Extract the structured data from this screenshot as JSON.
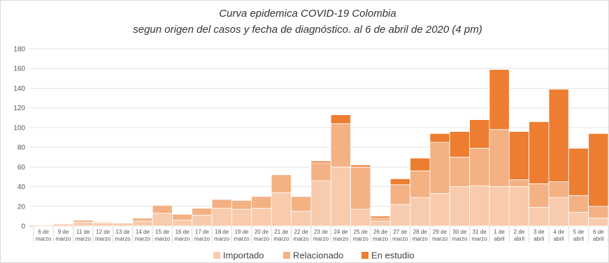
{
  "chart_data": {
    "type": "bar",
    "stacked": true,
    "title": "Curva epidemica  COVID-19 Colombia",
    "subtitle": "segun origen del casos y fecha de diagnóstico.  al 6 de abril de 2020 (4 pm)",
    "categories": [
      [
        "6 de",
        "marzo"
      ],
      [
        "9 de",
        "marzo"
      ],
      [
        "11 de",
        "marzo"
      ],
      [
        "12 de",
        "marzo"
      ],
      [
        "13 de",
        "marzo"
      ],
      [
        "14 de",
        "marzo"
      ],
      [
        "15 de",
        "marzo"
      ],
      [
        "16 de",
        "marzo"
      ],
      [
        "17 de",
        "marzo"
      ],
      [
        "18 de",
        "marzo"
      ],
      [
        "19 de",
        "marzo"
      ],
      [
        "20 de",
        "marzo"
      ],
      [
        "21 de",
        "marzo"
      ],
      [
        "22 de",
        "marzo"
      ],
      [
        "23 de",
        "marzo"
      ],
      [
        "24 de",
        "marzo"
      ],
      [
        "25 de",
        "marzo"
      ],
      [
        "26 de",
        "marzo"
      ],
      [
        "27 de",
        "marzo"
      ],
      [
        "28 de",
        "marzo"
      ],
      [
        "29 de",
        "marzo"
      ],
      [
        "30 de",
        "marzo"
      ],
      [
        "31 de",
        "marzo"
      ],
      [
        "1 de",
        "abril"
      ],
      [
        "2 de",
        "abril"
      ],
      [
        "3 de",
        "abril"
      ],
      [
        "4 de",
        "abril"
      ],
      [
        "5 de",
        "abril"
      ],
      [
        "6 de",
        "abril"
      ]
    ],
    "series": [
      {
        "name": "Importado",
        "color": "#F8CBAD",
        "values": [
          1,
          2,
          4,
          3,
          3,
          5,
          13,
          6,
          11,
          18,
          17,
          18,
          34,
          15,
          46,
          60,
          17,
          5,
          22,
          29,
          33,
          40,
          41,
          40,
          40,
          19,
          29,
          14,
          8
        ]
      },
      {
        "name": "Relacionado",
        "color": "#F4B183",
        "values": [
          0,
          0,
          2,
          1,
          0,
          3,
          8,
          6,
          7,
          9,
          9,
          12,
          18,
          15,
          18,
          44,
          43,
          3,
          20,
          27,
          52,
          30,
          38,
          58,
          7,
          24,
          16,
          17,
          12
        ]
      },
      {
        "name": "En estudio",
        "color": "#ED7D31",
        "values": [
          0,
          0,
          0,
          0,
          0,
          0,
          0,
          0,
          0,
          0,
          0,
          0,
          0,
          0,
          2,
          9,
          2,
          2,
          6,
          13,
          9,
          26,
          29,
          61,
          49,
          63,
          94,
          48,
          74
        ]
      }
    ],
    "y_ticks": [
      "0",
      "20",
      "40",
      "60",
      "80",
      "100",
      "120",
      "140",
      "160",
      "180"
    ],
    "ylim": [
      0,
      180
    ],
    "grid": true,
    "legend_position": "bottom"
  }
}
